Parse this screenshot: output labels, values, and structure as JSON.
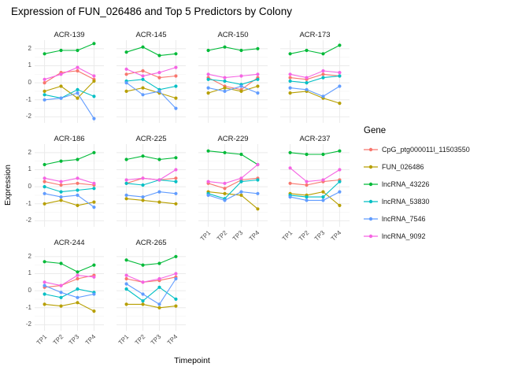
{
  "page": {
    "title": "Expression of FUN_026486 and Top 5 Predictors by Colony"
  },
  "chart_data": {
    "type": "line",
    "title": "Expression of FUN_026486 and Top 5 Predictors by Colony",
    "xlabel": "Timepoint",
    "ylabel": "Expression",
    "legend_title": "Gene",
    "legend_position": "right",
    "grid": true,
    "x": [
      "TP1",
      "TP2",
      "TP3",
      "TP4"
    ],
    "yticks": [
      -2,
      -1,
      0,
      1,
      2
    ],
    "ylim": [
      -2.35,
      2.5
    ],
    "genes": [
      {
        "name": "CpG_ptg000011l_11503550",
        "color": "#F8766D"
      },
      {
        "name": "FUN_026486",
        "color": "#B79F00"
      },
      {
        "name": "lncRNA_43226",
        "color": "#00BA38"
      },
      {
        "name": "lncRNA_53830",
        "color": "#00BFC4"
      },
      {
        "name": "lncRNA_7546",
        "color": "#619CFF"
      },
      {
        "name": "lncRNA_9092",
        "color": "#F564E3"
      }
    ],
    "facets": [
      {
        "colony": "ACR-139",
        "series": [
          [
            0.0,
            0.6,
            0.7,
            0.2
          ],
          [
            -0.5,
            -0.2,
            -0.9,
            0.1
          ],
          [
            1.7,
            1.9,
            1.9,
            2.3
          ],
          [
            -0.7,
            -0.9,
            -0.4,
            -0.8
          ],
          [
            -1.0,
            -0.9,
            -0.6,
            -2.1
          ],
          [
            0.2,
            0.5,
            0.9,
            0.4
          ]
        ]
      },
      {
        "colony": "ACR-145",
        "series": [
          [
            0.5,
            0.7,
            0.3,
            0.4
          ],
          [
            -0.5,
            -0.3,
            -0.6,
            -0.9
          ],
          [
            1.8,
            2.1,
            1.6,
            1.7
          ],
          [
            0.1,
            0.2,
            -0.4,
            -0.2
          ],
          [
            0.0,
            -0.7,
            -0.5,
            -1.5
          ],
          [
            0.8,
            0.4,
            0.6,
            0.9
          ]
        ]
      },
      {
        "colony": "ACR-150",
        "series": [
          [
            0.3,
            -0.2,
            -0.4,
            0.3
          ],
          [
            -0.6,
            -0.3,
            -0.5,
            -0.2
          ],
          [
            1.9,
            2.1,
            1.9,
            2.0
          ],
          [
            0.2,
            0.1,
            -0.1,
            0.2
          ],
          [
            -0.3,
            -0.5,
            -0.2,
            -0.6
          ],
          [
            0.5,
            0.3,
            0.4,
            0.5
          ]
        ]
      },
      {
        "colony": "ACR-173",
        "series": [
          [
            0.3,
            0.2,
            0.5,
            0.4
          ],
          [
            -0.6,
            -0.5,
            -0.9,
            -1.2
          ],
          [
            1.7,
            1.9,
            1.7,
            2.2
          ],
          [
            0.1,
            0.0,
            0.3,
            0.4
          ],
          [
            -0.3,
            -0.4,
            -0.8,
            -0.2
          ],
          [
            0.5,
            0.3,
            0.7,
            0.6
          ]
        ]
      },
      {
        "colony": "ACR-186",
        "series": [
          [
            0.3,
            0.1,
            0.2,
            0.1
          ],
          [
            -1.0,
            -0.8,
            -1.1,
            -0.9
          ],
          [
            1.3,
            1.5,
            1.6,
            2.0
          ],
          [
            0.0,
            -0.3,
            -0.2,
            -0.1
          ],
          [
            -0.4,
            -0.6,
            -0.5,
            -1.2
          ],
          [
            0.5,
            0.3,
            0.5,
            0.2
          ]
        ]
      },
      {
        "colony": "ACR-225",
        "series": [
          [
            0.2,
            0.5,
            0.4,
            0.5
          ],
          [
            -0.7,
            -0.8,
            -0.9,
            -1.0
          ],
          [
            1.6,
            1.8,
            1.6,
            1.7
          ],
          [
            0.2,
            0.1,
            0.4,
            0.3
          ],
          [
            -0.5,
            -0.6,
            -0.3,
            -0.4
          ],
          [
            0.4,
            0.5,
            0.4,
            1.0
          ]
        ]
      },
      {
        "colony": "ACR-229",
        "series": [
          [
            0.2,
            -0.1,
            0.4,
            0.5
          ],
          [
            -0.3,
            -0.4,
            -0.5,
            -1.3
          ],
          [
            2.1,
            2.0,
            1.9,
            1.3
          ],
          [
            -0.4,
            -0.7,
            0.3,
            0.4
          ],
          [
            -0.5,
            -0.8,
            -0.3,
            -0.4
          ],
          [
            0.3,
            0.2,
            0.5,
            1.3
          ]
        ]
      },
      {
        "colony": "ACR-237",
        "series": [
          [
            0.2,
            0.1,
            0.3,
            0.4
          ],
          [
            -0.4,
            -0.5,
            -0.3,
            -1.1
          ],
          [
            2.0,
            1.9,
            1.9,
            2.1
          ],
          [
            -0.5,
            -0.6,
            -0.6,
            0.3
          ],
          [
            -0.6,
            -0.8,
            -0.8,
            -0.3
          ],
          [
            1.1,
            0.3,
            0.4,
            1.0
          ]
        ]
      },
      {
        "colony": "ACR-244",
        "series": [
          [
            0.2,
            0.3,
            0.7,
            0.9
          ],
          [
            -0.8,
            -0.9,
            -0.7,
            -1.2
          ],
          [
            1.7,
            1.6,
            1.1,
            1.5
          ],
          [
            -0.2,
            -0.4,
            0.1,
            -0.1
          ],
          [
            0.3,
            -0.1,
            -0.4,
            -0.2
          ],
          [
            0.5,
            0.3,
            0.9,
            0.8
          ]
        ]
      },
      {
        "colony": "ACR-265",
        "series": [
          [
            0.7,
            0.5,
            0.6,
            0.8
          ],
          [
            -0.8,
            -0.8,
            -1.0,
            -0.9
          ],
          [
            1.8,
            1.5,
            1.6,
            2.0
          ],
          [
            0.1,
            -0.6,
            0.2,
            -0.5
          ],
          [
            0.4,
            -0.2,
            -0.8,
            0.7
          ],
          [
            0.9,
            0.5,
            0.7,
            1.0
          ]
        ]
      }
    ],
    "style": {
      "grid_major_color": "#ebebeb",
      "grid_minor_color": "#f4f4f4",
      "axis_text_color": "#4d4d4d"
    }
  }
}
